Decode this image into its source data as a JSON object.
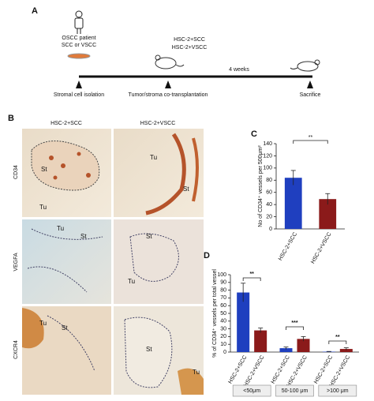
{
  "panel_a": {
    "label": "A",
    "patient": "OSCC patient",
    "patient_type": "SCC or VSCC",
    "groups": [
      "HSC-2+SCC",
      "HSC-2+VSCC"
    ],
    "duration": "4 weeks",
    "steps": [
      "Stromal cell isolation",
      "Tumor/stroma co-transplantation",
      "Sacrifice"
    ]
  },
  "panel_b": {
    "label": "B",
    "columns": [
      "HSC-2+SCC",
      "HSC-2+VSCC"
    ],
    "rows": [
      "CD34",
      "VEGFA",
      "CXCR4"
    ],
    "image_labels": [
      [
        "St",
        "Tu"
      ],
      [
        "Tu",
        "St"
      ],
      [
        "Tu",
        "St"
      ],
      [
        "St",
        "Tu"
      ],
      [
        "Tu",
        "St"
      ],
      [
        "St",
        "Tu"
      ]
    ]
  },
  "chart_data": [
    {
      "type": "bar",
      "label": "C",
      "ylabel": "No of CD34⁺ vessels per 500μm²",
      "categories": [
        "HSC-2+SCC",
        "HSC-2+VSCC"
      ],
      "values": [
        84,
        49
      ],
      "errors": [
        12,
        9
      ],
      "colors": [
        "#1f3fbf",
        "#8b1a1a"
      ],
      "ylim": [
        0,
        140
      ],
      "yticks": [
        0,
        20,
        40,
        60,
        80,
        100,
        120,
        140
      ],
      "annotations": [
        "**"
      ]
    },
    {
      "type": "grouped-bar",
      "label": "D",
      "ylabel": "% of CD34⁺ vessels per total vessel",
      "categories": [
        "<50μm",
        "50-100 μm",
        ">100 μm"
      ],
      "series": [
        {
          "name": "HSC-2+SCC",
          "color": "#1f3fbf",
          "values": [
            77,
            5,
            0.5
          ],
          "errors": [
            12,
            1.5,
            0.3
          ]
        },
        {
          "name": "HSC-2+VSCC",
          "color": "#8b1a1a",
          "values": [
            28,
            17,
            4
          ],
          "errors": [
            3,
            3,
            1.5
          ]
        }
      ],
      "ylim": [
        0,
        100
      ],
      "yticks": [
        0,
        10,
        20,
        30,
        40,
        50,
        60,
        70,
        80,
        90,
        100
      ],
      "annotations": [
        "**",
        "***",
        "**"
      ]
    }
  ]
}
